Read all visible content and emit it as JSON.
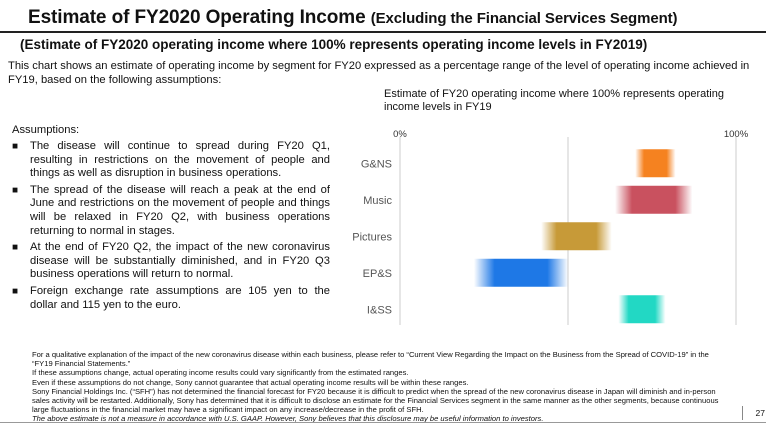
{
  "header": {
    "title_main": "Estimate of FY2020 Operating Income",
    "title_sub": "(Excluding the Financial Services Segment)",
    "subtitle": "(Estimate of FY2020 operating income where 100% represents operating income levels in FY2019)",
    "intro": "This chart shows an estimate of operating income by segment for FY20 expressed as a percentage range of the level of operating income achieved in FY19, based on the following assumptions:"
  },
  "assumptions": {
    "heading": "Assumptions:",
    "bullet": "■",
    "items": [
      "The disease will continue to spread during FY20 Q1, resulting in restrictions on the movement of people and things as well as disruption in business operations.",
      "The spread of the disease will reach a peak at the end of June and restrictions on the movement of people and things will be relaxed in FY20 Q2, with business operations returning to normal in stages.",
      "At the end of FY20 Q2, the impact of the new coronavirus disease will be substantially diminished, and in FY20 Q3 business operations will return to normal.",
      "Foreign exchange rate assumptions are 105 yen to the dollar and 115 yen to the euro."
    ]
  },
  "chart_data": {
    "type": "bar",
    "title": "Estimate of FY20 operating income where 100% represents operating income levels in FY19",
    "xlim": [
      0,
      100
    ],
    "x_tick_labels": [
      "0%",
      "100%"
    ],
    "categories": [
      "G&NS",
      "Music",
      "Pictures",
      "EP&S",
      "I&SS"
    ],
    "ranges": [
      [
        70,
        82
      ],
      [
        64,
        87
      ],
      [
        42,
        63
      ],
      [
        22,
        50
      ],
      [
        65,
        79
      ]
    ],
    "colors": [
      "#f58220",
      "#c9515f",
      "#c79a38",
      "#1e78e6",
      "#22d8c4"
    ],
    "grid": true
  },
  "footnotes": {
    "lines": [
      "For a qualitative explanation of the impact of the new coronavirus disease within each business, please refer to “Current View Regarding the Impact on the Business from the Spread of COVID-19” in the “FY19 Financial Statements.”",
      "If these assumptions change, actual operating income results could vary significantly from the estimated ranges.",
      "Even if these assumptions do not change, Sony cannot guarantee that actual operating income results will be within these ranges.",
      "Sony Financial Holdings Inc. (“SFH”) has not determined the financial forecast for FY20 because it is difficult to predict when the spread of the new coronavirus disease in Japan will diminish and in-person sales activity will be restarted. Additionally, Sony has determined that it is difficult to disclose an estimate for the Financial Services segment in the same manner as the other segments, because continuous large fluctuations in the financial market may have a significant impact on any increase/decrease in the profit of SFH."
    ],
    "disclaimer": "The above estimate is not a measure in accordance with U.S. GAAP. However, Sony believes that this disclosure may be useful information to investors."
  },
  "page_number": "27"
}
